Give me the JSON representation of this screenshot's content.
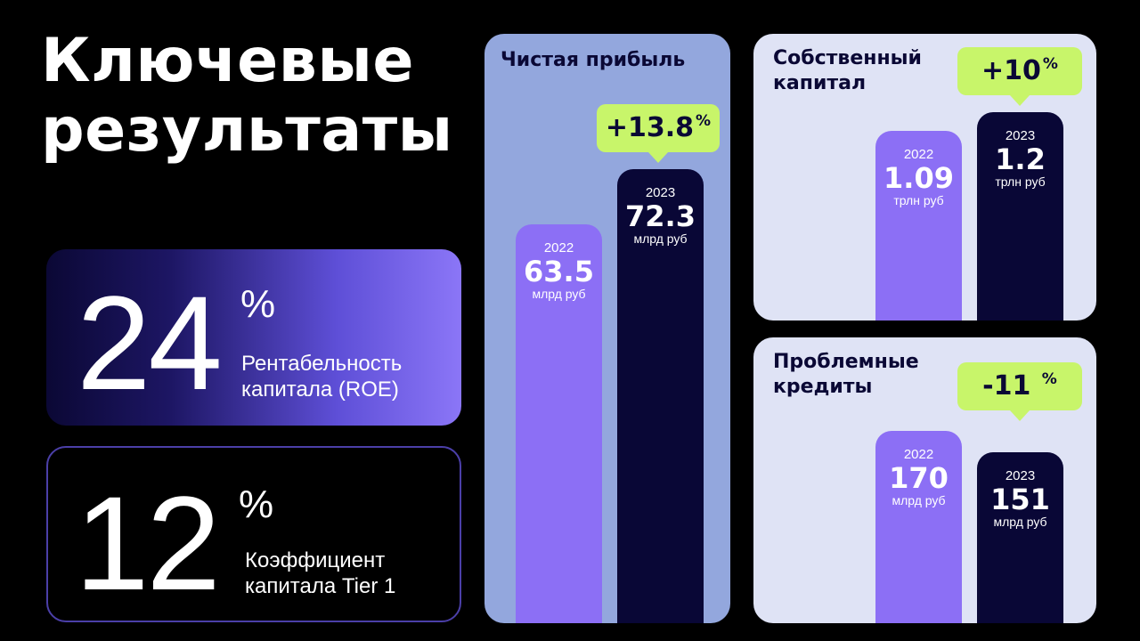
{
  "title": {
    "line1": "Ключевые",
    "line2": "результаты"
  },
  "kpis": {
    "roe": {
      "value": "24",
      "unit": "%",
      "label": "Рентабельность\nкапитала (ROE)"
    },
    "tier1": {
      "value": "12",
      "unit": "%",
      "label": "Коэффициент\nкапитала Tier 1"
    }
  },
  "colors": {
    "bar_2022": "#8c6ff5",
    "bar_2023": "#090736",
    "badge": "#c8f56a",
    "text_dark": "#0a0835"
  },
  "chart_data": [
    {
      "type": "bar",
      "title": "Чистая прибыль",
      "categories": [
        "2022",
        "2023"
      ],
      "values": [
        63.5,
        72.3
      ],
      "value_labels": [
        "63.5",
        "72.3"
      ],
      "unit": "млрд руб",
      "change": {
        "value": "+13.8",
        "unit": "%"
      }
    },
    {
      "type": "bar",
      "title": "Собственный\nкапитал",
      "categories": [
        "2022",
        "2023"
      ],
      "values": [
        1.09,
        1.2
      ],
      "value_labels": [
        "1.09",
        "1.2"
      ],
      "unit": "трлн руб",
      "change": {
        "value": "+10",
        "unit": "%"
      }
    },
    {
      "type": "bar",
      "title": "Проблемные\nкредиты",
      "categories": [
        "2022",
        "2023"
      ],
      "values": [
        170,
        151
      ],
      "value_labels": [
        "170",
        "151"
      ],
      "unit": "млрд руб",
      "change": {
        "value": "-11 ",
        "unit": "%"
      }
    }
  ]
}
